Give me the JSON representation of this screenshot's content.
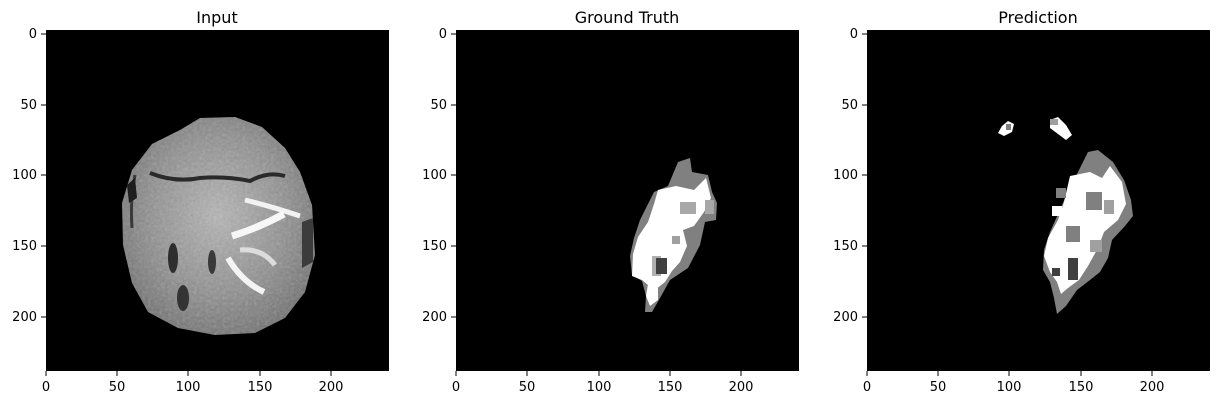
{
  "figure": {
    "panels": [
      {
        "title": "Input"
      },
      {
        "title": "Ground Truth"
      },
      {
        "title": "Prediction"
      }
    ],
    "xticks": [
      "0",
      "50",
      "100",
      "150",
      "200"
    ],
    "yticks": [
      "0",
      "50",
      "100",
      "150",
      "200"
    ]
  },
  "colors": {
    "background": "#000000",
    "mask_white": "#ffffff",
    "mask_light_gray": "#a0a0a0",
    "mask_gray": "#808080",
    "mask_dark_gray": "#404040",
    "brain_gray": "#8c8c8c"
  }
}
